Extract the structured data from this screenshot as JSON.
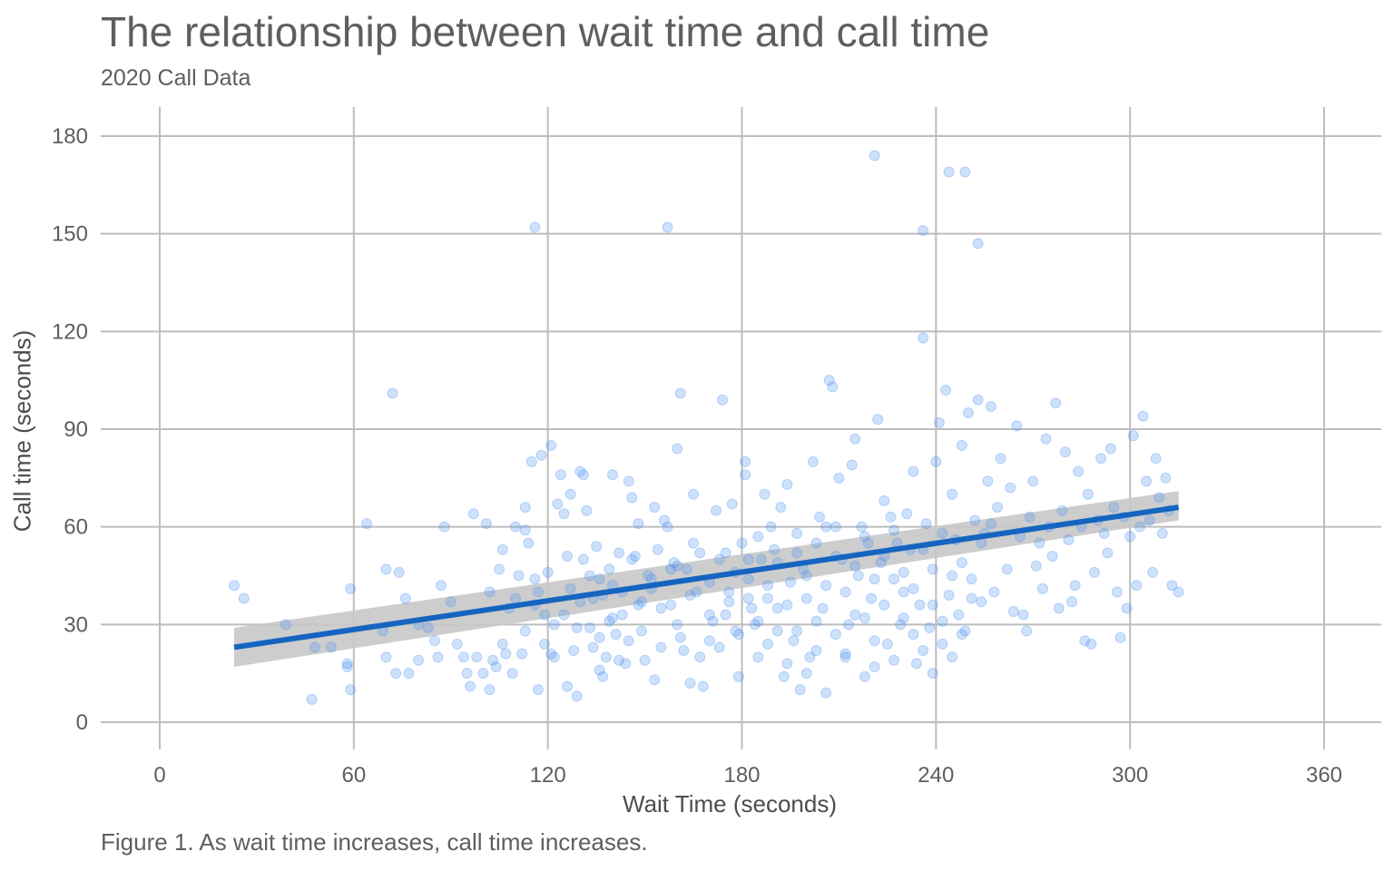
{
  "title": "The relationship between wait time and call time",
  "subtitle": "2020 Call Data",
  "caption": "Figure 1. As wait time increases, call time increases.",
  "chart_data": {
    "type": "scatter",
    "xlabel": "Wait Time (seconds)",
    "ylabel": "Call time (seconds)",
    "xlim": [
      -15,
      375
    ],
    "ylim": [
      -8,
      190
    ],
    "x_ticks": [
      0,
      60,
      120,
      180,
      240,
      300,
      360
    ],
    "y_ticks": [
      0,
      30,
      60,
      90,
      120,
      150,
      180
    ],
    "grid": true,
    "legend": "none",
    "colors": {
      "points": "#4f94f0",
      "trend_line": "#1565c0",
      "confidence_band": "#c8c8c8"
    },
    "trend_line": {
      "x": [
        23,
        315
      ],
      "y": [
        23,
        66
      ],
      "ci_start": [
        17,
        29
      ],
      "ci_end": [
        62,
        71
      ]
    },
    "points": [
      [
        23,
        42
      ],
      [
        26,
        38
      ],
      [
        39,
        30
      ],
      [
        47,
        7
      ],
      [
        48,
        23
      ],
      [
        53,
        23
      ],
      [
        58,
        18
      ],
      [
        58,
        17
      ],
      [
        59,
        41
      ],
      [
        59,
        10
      ],
      [
        64,
        61
      ],
      [
        69,
        28
      ],
      [
        70,
        20
      ],
      [
        70,
        47
      ],
      [
        72,
        101
      ],
      [
        73,
        15
      ],
      [
        74,
        46
      ],
      [
        76,
        38
      ],
      [
        77,
        15
      ],
      [
        80,
        30
      ],
      [
        80,
        19
      ],
      [
        83,
        29
      ],
      [
        85,
        25
      ],
      [
        86,
        20
      ],
      [
        87,
        42
      ],
      [
        88,
        60
      ],
      [
        90,
        37
      ],
      [
        92,
        24
      ],
      [
        94,
        20
      ],
      [
        95,
        15
      ],
      [
        96,
        11
      ],
      [
        97,
        64
      ],
      [
        98,
        20
      ],
      [
        100,
        15
      ],
      [
        101,
        61
      ],
      [
        102,
        10
      ],
      [
        102,
        40
      ],
      [
        103,
        19
      ],
      [
        104,
        17
      ],
      [
        105,
        47
      ],
      [
        106,
        53
      ],
      [
        106,
        24
      ],
      [
        107,
        21
      ],
      [
        108,
        35
      ],
      [
        109,
        15
      ],
      [
        110,
        60
      ],
      [
        111,
        45
      ],
      [
        112,
        21
      ],
      [
        113,
        59
      ],
      [
        113,
        66
      ],
      [
        114,
        55
      ],
      [
        115,
        80
      ],
      [
        116,
        36
      ],
      [
        117,
        10
      ],
      [
        117,
        40
      ],
      [
        118,
        82
      ],
      [
        119,
        24
      ],
      [
        120,
        46
      ],
      [
        121,
        85
      ],
      [
        121,
        21
      ],
      [
        122,
        20
      ],
      [
        123,
        67
      ],
      [
        124,
        76
      ],
      [
        125,
        64
      ],
      [
        126,
        51
      ],
      [
        126,
        11
      ],
      [
        127,
        70
      ],
      [
        128,
        22
      ],
      [
        129,
        8
      ],
      [
        130,
        77
      ],
      [
        131,
        76
      ],
      [
        132,
        65
      ],
      [
        133,
        45
      ],
      [
        134,
        38
      ],
      [
        135,
        54
      ],
      [
        136,
        16
      ],
      [
        136,
        26
      ],
      [
        137,
        14
      ],
      [
        138,
        20
      ],
      [
        139,
        47
      ],
      [
        140,
        32
      ],
      [
        140,
        76
      ],
      [
        141,
        27
      ],
      [
        142,
        19
      ],
      [
        143,
        40
      ],
      [
        144,
        18
      ],
      [
        145,
        74
      ],
      [
        146,
        69
      ],
      [
        147,
        51
      ],
      [
        148,
        61
      ],
      [
        149,
        37
      ],
      [
        150,
        19
      ],
      [
        151,
        45
      ],
      [
        152,
        44
      ],
      [
        153,
        13
      ],
      [
        153,
        66
      ],
      [
        154,
        53
      ],
      [
        155,
        23
      ],
      [
        156,
        62
      ],
      [
        157,
        60
      ],
      [
        158,
        36
      ],
      [
        159,
        49
      ],
      [
        160,
        30
      ],
      [
        160,
        84
      ],
      [
        161,
        101
      ],
      [
        162,
        22
      ],
      [
        163,
        47
      ],
      [
        164,
        12
      ],
      [
        165,
        70
      ],
      [
        166,
        40
      ],
      [
        167,
        20
      ],
      [
        168,
        11
      ],
      [
        170,
        25
      ],
      [
        171,
        31
      ],
      [
        172,
        65
      ],
      [
        173,
        50
      ],
      [
        174,
        99
      ],
      [
        175,
        33
      ],
      [
        176,
        40
      ],
      [
        177,
        67
      ],
      [
        178,
        28
      ],
      [
        179,
        14
      ],
      [
        180,
        55
      ],
      [
        181,
        80
      ],
      [
        181,
        76
      ],
      [
        182,
        44
      ],
      [
        183,
        35
      ],
      [
        184,
        30
      ],
      [
        185,
        20
      ],
      [
        186,
        50
      ],
      [
        187,
        70
      ],
      [
        188,
        38
      ],
      [
        189,
        60
      ],
      [
        190,
        53
      ],
      [
        191,
        28
      ],
      [
        192,
        66
      ],
      [
        193,
        14
      ],
      [
        194,
        73
      ],
      [
        195,
        43
      ],
      [
        196,
        25
      ],
      [
        197,
        58
      ],
      [
        198,
        10
      ],
      [
        199,
        47
      ],
      [
        200,
        38
      ],
      [
        201,
        20
      ],
      [
        202,
        80
      ],
      [
        203,
        55
      ],
      [
        204,
        63
      ],
      [
        205,
        35
      ],
      [
        206,
        42
      ],
      [
        207,
        105
      ],
      [
        208,
        103
      ],
      [
        209,
        60
      ],
      [
        210,
        75
      ],
      [
        211,
        50
      ],
      [
        212,
        20
      ],
      [
        213,
        30
      ],
      [
        214,
        79
      ],
      [
        215,
        87
      ],
      [
        216,
        45
      ],
      [
        217,
        60
      ],
      [
        218,
        32
      ],
      [
        219,
        55
      ],
      [
        220,
        38
      ],
      [
        221,
        17
      ],
      [
        222,
        93
      ],
      [
        223,
        49
      ],
      [
        224,
        68
      ],
      [
        225,
        24
      ],
      [
        226,
        63
      ],
      [
        227,
        44
      ],
      [
        228,
        55
      ],
      [
        229,
        30
      ],
      [
        230,
        40
      ],
      [
        231,
        64
      ],
      [
        232,
        53
      ],
      [
        233,
        77
      ],
      [
        234,
        18
      ],
      [
        235,
        36
      ],
      [
        236,
        151
      ],
      [
        236,
        118
      ],
      [
        237,
        61
      ],
      [
        238,
        29
      ],
      [
        239,
        47
      ],
      [
        240,
        80
      ],
      [
        241,
        92
      ],
      [
        242,
        24
      ],
      [
        243,
        102
      ],
      [
        244,
        39
      ],
      [
        245,
        70
      ],
      [
        246,
        56
      ],
      [
        247,
        33
      ],
      [
        248,
        85
      ],
      [
        249,
        28
      ],
      [
        250,
        95
      ],
      [
        251,
        44
      ],
      [
        252,
        62
      ],
      [
        253,
        147
      ],
      [
        253,
        99
      ],
      [
        254,
        37
      ],
      [
        255,
        58
      ],
      [
        256,
        74
      ],
      [
        257,
        97
      ],
      [
        258,
        40
      ],
      [
        259,
        66
      ],
      [
        260,
        81
      ],
      [
        221,
        174
      ],
      [
        244,
        169
      ],
      [
        249,
        169
      ],
      [
        116,
        152
      ],
      [
        157,
        152
      ],
      [
        262,
        47
      ],
      [
        263,
        72
      ],
      [
        264,
        34
      ],
      [
        265,
        91
      ],
      [
        266,
        57
      ],
      [
        267,
        33
      ],
      [
        268,
        28
      ],
      [
        269,
        63
      ],
      [
        270,
        74
      ],
      [
        271,
        48
      ],
      [
        272,
        55
      ],
      [
        273,
        41
      ],
      [
        274,
        87
      ],
      [
        275,
        60
      ],
      [
        276,
        51
      ],
      [
        277,
        98
      ],
      [
        278,
        35
      ],
      [
        279,
        65
      ],
      [
        280,
        83
      ],
      [
        281,
        56
      ],
      [
        282,
        37
      ],
      [
        283,
        42
      ],
      [
        284,
        77
      ],
      [
        285,
        60
      ],
      [
        286,
        25
      ],
      [
        287,
        70
      ],
      [
        288,
        24
      ],
      [
        289,
        46
      ],
      [
        290,
        62
      ],
      [
        291,
        81
      ],
      [
        292,
        58
      ],
      [
        293,
        52
      ],
      [
        294,
        84
      ],
      [
        295,
        66
      ],
      [
        296,
        40
      ],
      [
        297,
        26
      ],
      [
        298,
        63
      ],
      [
        299,
        35
      ],
      [
        300,
        57
      ],
      [
        301,
        88
      ],
      [
        302,
        42
      ],
      [
        303,
        60
      ],
      [
        304,
        94
      ],
      [
        305,
        74
      ],
      [
        306,
        62
      ],
      [
        307,
        46
      ],
      [
        308,
        81
      ],
      [
        309,
        69
      ],
      [
        310,
        58
      ],
      [
        311,
        75
      ],
      [
        312,
        65
      ],
      [
        313,
        42
      ],
      [
        315,
        40
      ],
      [
        160,
        48
      ],
      [
        165,
        55
      ],
      [
        170,
        43
      ],
      [
        175,
        52
      ],
      [
        178,
        46
      ],
      [
        182,
        38
      ],
      [
        185,
        57
      ],
      [
        188,
        42
      ],
      [
        191,
        49
      ],
      [
        194,
        36
      ],
      [
        197,
        52
      ],
      [
        200,
        45
      ],
      [
        203,
        31
      ],
      [
        206,
        60
      ],
      [
        209,
        51
      ],
      [
        212,
        40
      ],
      [
        215,
        48
      ],
      [
        218,
        57
      ],
      [
        221,
        44
      ],
      [
        224,
        51
      ],
      [
        227,
        59
      ],
      [
        230,
        46
      ],
      [
        233,
        41
      ],
      [
        236,
        53
      ],
      [
        239,
        36
      ],
      [
        242,
        58
      ],
      [
        245,
        45
      ],
      [
        248,
        49
      ],
      [
        251,
        38
      ],
      [
        254,
        55
      ],
      [
        257,
        61
      ],
      [
        140,
        42
      ],
      [
        143,
        33
      ],
      [
        146,
        50
      ],
      [
        149,
        28
      ],
      [
        152,
        41
      ],
      [
        155,
        35
      ],
      [
        158,
        47
      ],
      [
        161,
        26
      ],
      [
        164,
        39
      ],
      [
        167,
        52
      ],
      [
        130,
        37
      ],
      [
        133,
        29
      ],
      [
        136,
        44
      ],
      [
        139,
        31
      ],
      [
        142,
        52
      ],
      [
        145,
        25
      ],
      [
        148,
        36
      ],
      [
        125,
        33
      ],
      [
        127,
        41
      ],
      [
        129,
        29
      ],
      [
        131,
        50
      ],
      [
        134,
        23
      ],
      [
        137,
        39
      ],
      [
        110,
        38
      ],
      [
        113,
        28
      ],
      [
        116,
        44
      ],
      [
        119,
        33
      ],
      [
        122,
        30
      ],
      [
        170,
        33
      ],
      [
        173,
        23
      ],
      [
        176,
        37
      ],
      [
        179,
        27
      ],
      [
        182,
        50
      ],
      [
        185,
        31
      ],
      [
        188,
        24
      ],
      [
        191,
        35
      ],
      [
        194,
        18
      ],
      [
        197,
        28
      ],
      [
        200,
        15
      ],
      [
        203,
        22
      ],
      [
        206,
        9
      ],
      [
        209,
        27
      ],
      [
        212,
        21
      ],
      [
        215,
        33
      ],
      [
        218,
        14
      ],
      [
        221,
        25
      ],
      [
        224,
        36
      ],
      [
        227,
        19
      ],
      [
        230,
        32
      ],
      [
        233,
        27
      ],
      [
        236,
        22
      ],
      [
        239,
        15
      ],
      [
        242,
        31
      ],
      [
        245,
        20
      ],
      [
        248,
        27
      ]
    ]
  }
}
